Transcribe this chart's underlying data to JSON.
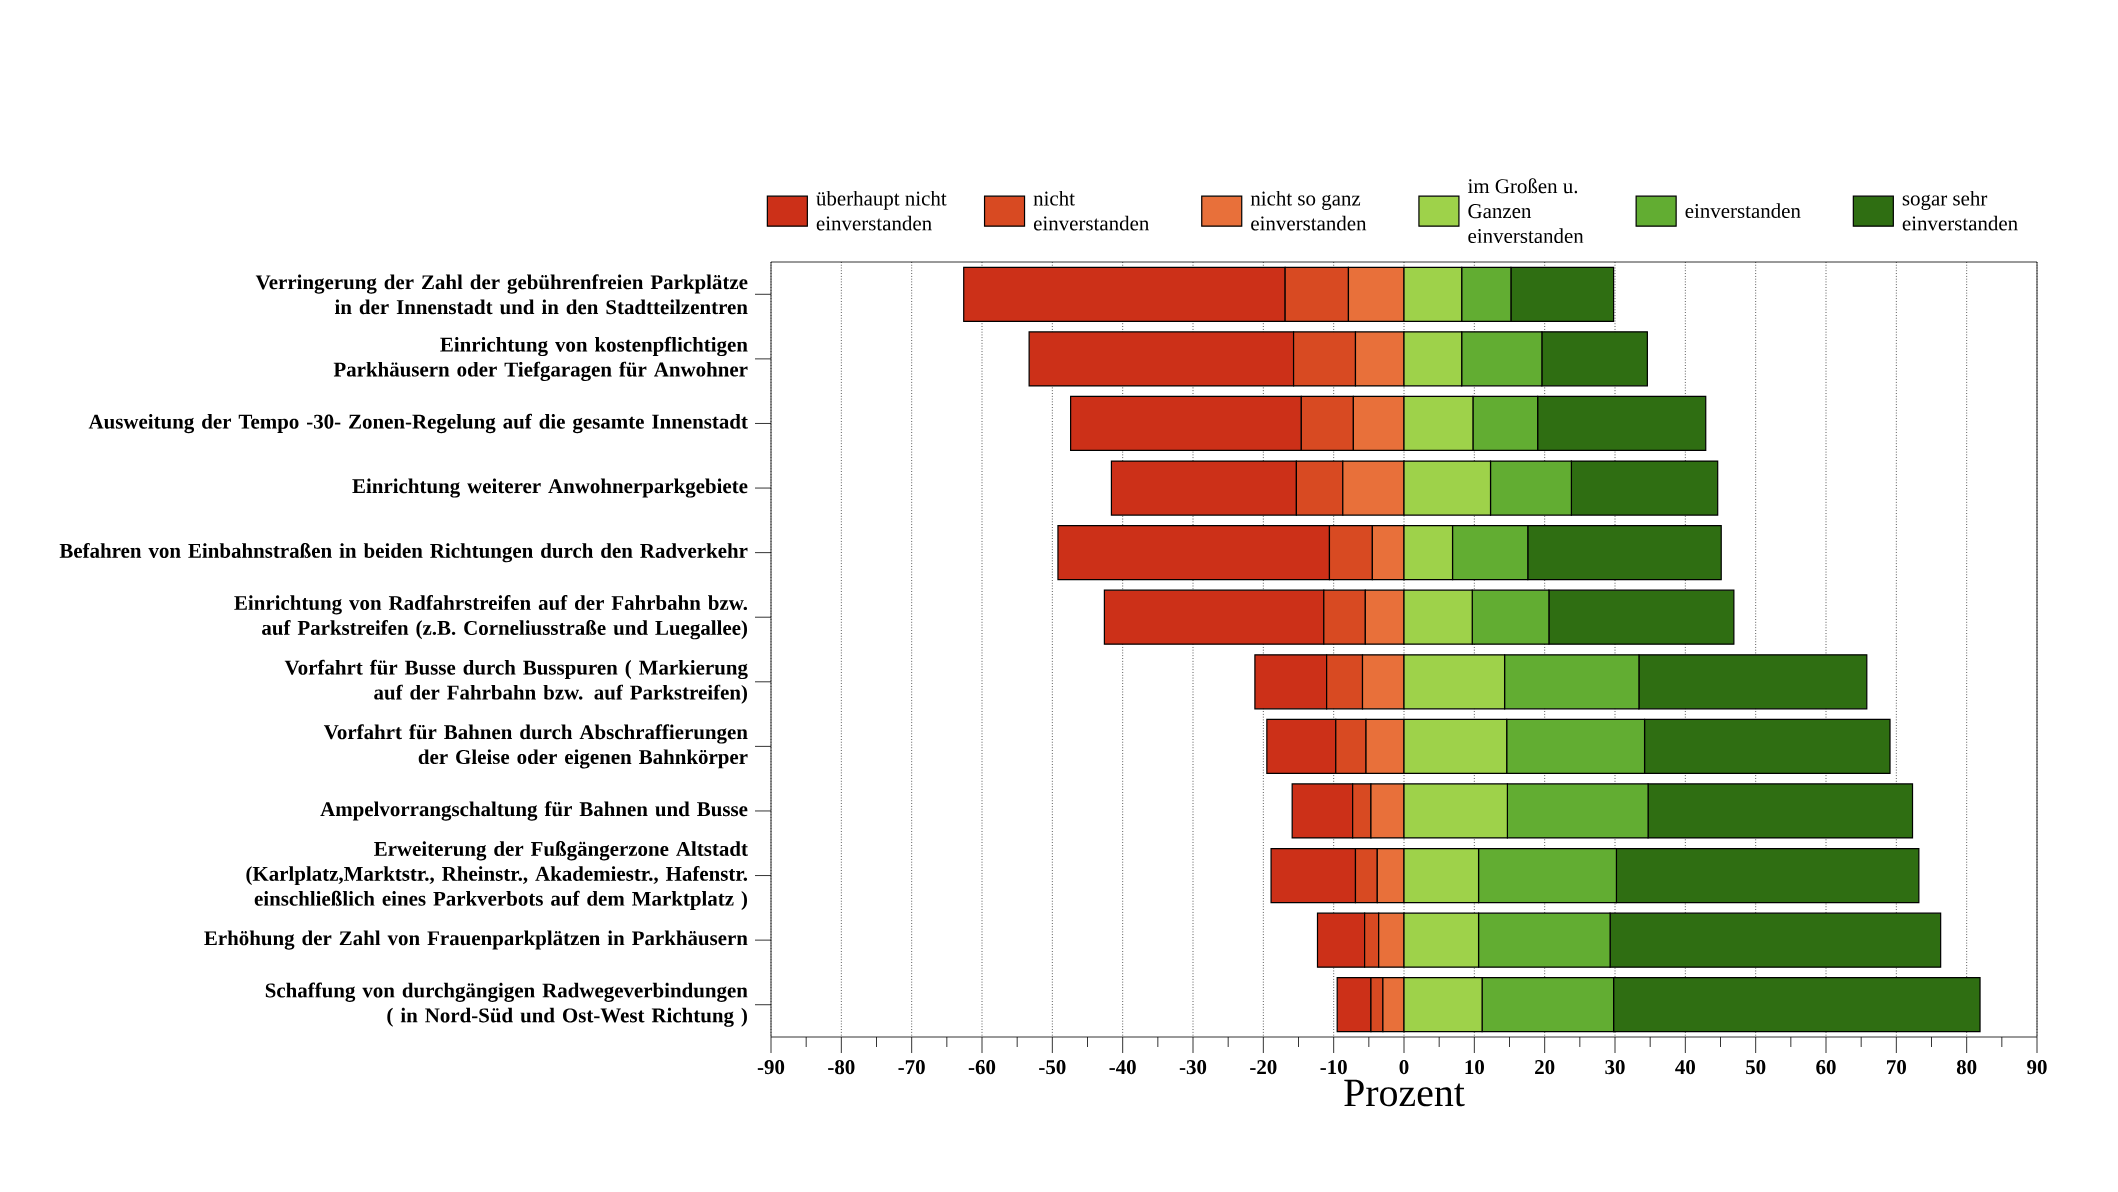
{
  "chart_data": {
    "type": "bar",
    "orientation": "horizontal",
    "stacked": true,
    "xlabel": "Prozent",
    "categories": [
      "Verringerung der Zahl der gebührenfreien Parkplätze in der Innenstadt und in den Stadtteilzentren",
      "Einrichtung von kostenpflichtigen Parkhäusern oder Tiefgaragen für Anwohner",
      "Ausweitung der Tempo -30- Zonen-Regelung auf die gesamte Innenstadt",
      "Einrichtung weiterer Anwohnerparkgebiete",
      "Befahren von Einbahnstraßen in beiden Richtungen durch den Radverkehr",
      "Einrichtung von Radfahrstreifen auf der Fahrbahn bzw. auf Parkstreifen (z.B. Corneliusstraße und Luegallee)",
      "Vorfahrt für Busse durch Busspuren ( Markierung auf der Fahrbahn bzw. auf Parkstreifen)",
      "Vorfahrt für Bahnen durch Abschraffierungen der Gleise oder eigenen Bahnkörper",
      "Ampelvorrangschaltung für Bahnen und Busse",
      "Erweiterung der Fußgängerzone Altstadt (Karlplatz,Marktstr., Rheinstr., Akademiestr., Hafenstr. einschließlich eines Parkverbots auf dem Marktplatz )",
      "Erhöhung der Zahl von Frauenparkplätzen in Parkhäusern",
      "Schaffung von durchgängigen Radwegeverbindungen ( in Nord-Süd und Ost-West Richtung )"
    ],
    "series": [
      {
        "name": "überhaupt nicht einverstanden",
        "color": "#cc3018",
        "values": [
          -45.7,
          -37.6,
          -32.8,
          -26.3,
          -38.6,
          -31.2,
          -10.2,
          -9.8,
          -8.6,
          -12.0,
          -6.7,
          -4.8
        ]
      },
      {
        "name": "nicht einverstanden",
        "color": "#d84a22",
        "values": [
          -9.0,
          -8.8,
          -7.4,
          -6.6,
          -6.1,
          -5.9,
          -5.1,
          -4.3,
          -2.6,
          -3.1,
          -2.0,
          -1.7
        ]
      },
      {
        "name": "nicht so ganz einverstanden",
        "color": "#e8703a",
        "values": [
          -7.9,
          -6.9,
          -7.2,
          -8.7,
          -4.5,
          -5.5,
          -5.9,
          -5.4,
          -4.7,
          -3.8,
          -3.6,
          -3.0
        ]
      },
      {
        "name": "im Großen u. Ganzen einverstanden",
        "color": "#9ed24a",
        "values": [
          8.2,
          8.2,
          9.8,
          12.3,
          6.9,
          9.7,
          14.3,
          14.6,
          14.7,
          10.6,
          10.6,
          11.1
        ]
      },
      {
        "name": "einverstanden",
        "color": "#62ad32",
        "values": [
          7.0,
          11.4,
          9.2,
          11.5,
          10.7,
          10.9,
          19.1,
          19.6,
          20.0,
          19.6,
          18.7,
          18.7
        ]
      },
      {
        "name": "sogar sehr einverstanden",
        "color": "#2f6e12",
        "values": [
          14.6,
          15.0,
          23.9,
          20.8,
          27.5,
          26.3,
          32.4,
          34.9,
          37.6,
          43.0,
          47.0,
          52.1
        ]
      }
    ],
    "xlim": [
      -90,
      90
    ],
    "xticks": [
      -90,
      -80,
      -70,
      -60,
      -50,
      -40,
      -30,
      -20,
      -10,
      0,
      10,
      20,
      30,
      40,
      50,
      60,
      70,
      80,
      90
    ],
    "grid": "x",
    "legend": "top"
  }
}
